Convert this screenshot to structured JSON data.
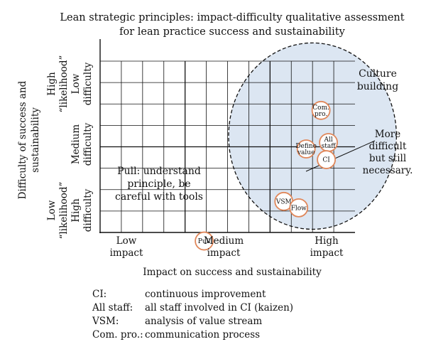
{
  "chart_data": {
    "type": "scatter",
    "title": [
      "Lean strategic principles: impact-difficulty qualitative assessment",
      "for lean practice success and sustainability"
    ],
    "xlabel": "Impact on success and sustainability",
    "ylabel": [
      "Difficulty of success and",
      "sustainability"
    ],
    "x_tick_labels": [
      [
        "Low",
        "impact"
      ],
      [
        "Medium",
        "impact"
      ],
      [
        "High",
        "impact"
      ]
    ],
    "y_tick_labels": [
      [
        "High",
        "“likelihood”",
        "Low",
        "difficulty"
      ],
      [
        "Medium",
        "difficulty"
      ],
      [
        "Low",
        "“likelihood”",
        "High",
        "difficulty"
      ]
    ],
    "grid": true,
    "xlim": [
      0,
      12
    ],
    "ylim": [
      0,
      8
    ],
    "points": [
      {
        "label": [
          "Com.",
          "pro."
        ],
        "x": 10.4,
        "y": 5.7
      },
      {
        "label": [
          "All",
          "staff"
        ],
        "x": 10.75,
        "y": 4.2
      },
      {
        "label": [
          "Define",
          "value"
        ],
        "x": 9.7,
        "y": 3.9
      },
      {
        "label": [
          "CI"
        ],
        "x": 10.65,
        "y": 3.4
      },
      {
        "label": [
          "VSM"
        ],
        "x": 8.65,
        "y": 1.45
      },
      {
        "label": [
          "Flow"
        ],
        "x": 9.35,
        "y": 1.15
      },
      {
        "label": [
          "Pull"
        ],
        "x": 4.9,
        "y": -0.4
      }
    ],
    "annotations": [
      {
        "text": [
          "Culture",
          "building"
        ]
      },
      {
        "text": [
          "More",
          "difficult",
          "but still",
          "necessary."
        ]
      },
      {
        "text": [
          "Pull: understand",
          "principle, be",
          "careful with tools"
        ]
      }
    ],
    "culture_region": {
      "cx": 10.0,
      "cy": 4.5,
      "rx": 3.95,
      "ry": 4.35
    },
    "colors": {
      "node_stroke": "#e0875a",
      "region_fill": "#dce6f2",
      "grid": "#111111"
    }
  },
  "legend": [
    {
      "term": "CI:",
      "definition": "continuous improvement"
    },
    {
      "term": "All staff:",
      "definition": "all staff involved in CI (kaizen)"
    },
    {
      "term": "VSM:",
      "definition": "analysis of value stream"
    },
    {
      "term": "Com. pro.:",
      "definition": "communication process"
    }
  ]
}
